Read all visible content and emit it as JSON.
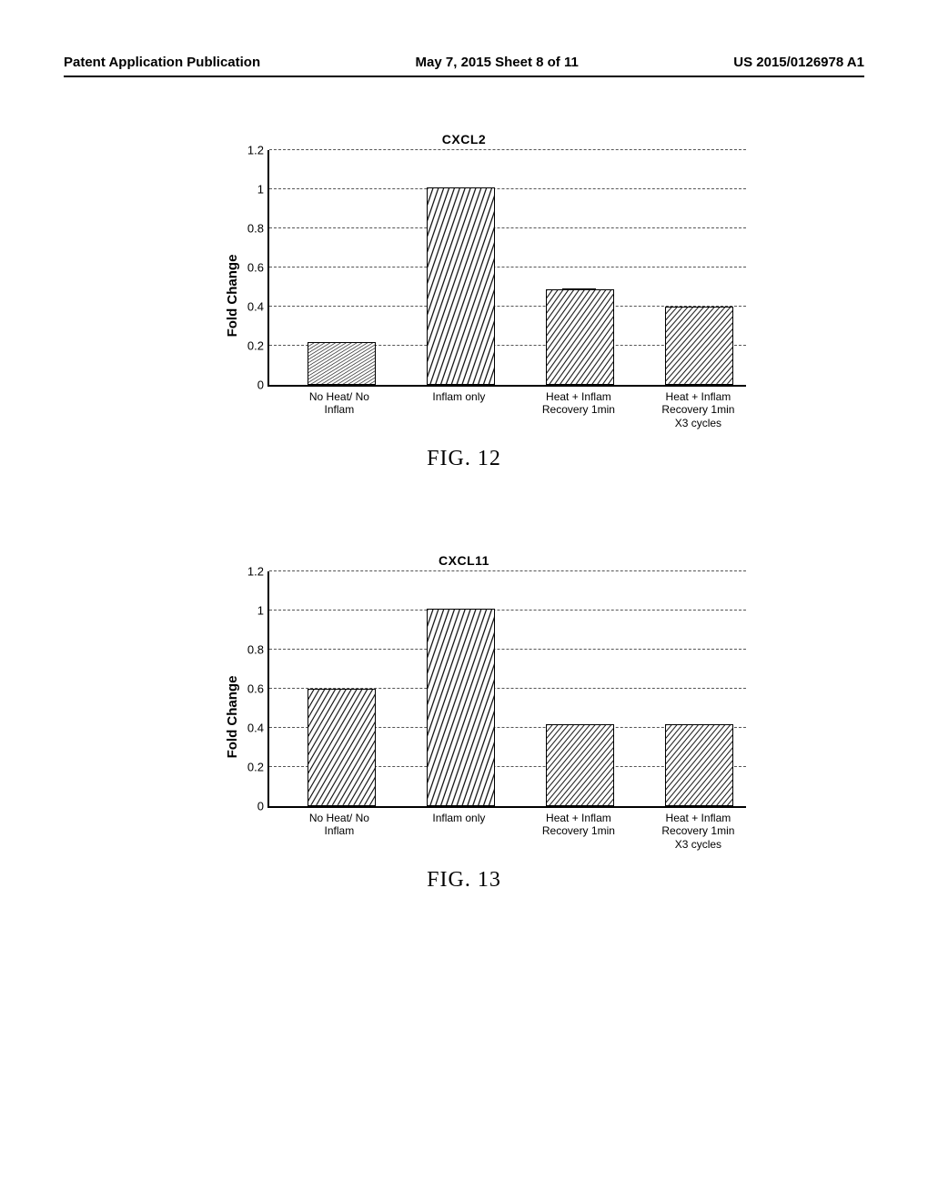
{
  "header": {
    "left": "Patent Application Publication",
    "center": "May 7, 2015   Sheet 8 of 11",
    "right": "US 2015/0126978 A1"
  },
  "charts": [
    {
      "id": "chart12",
      "title": "CXCL2",
      "caption": "FIG. 12",
      "ylabel": "Fold Change",
      "ymax": 1.2,
      "yticks": [
        0,
        0.2,
        0.4,
        0.6,
        0.8,
        1,
        1.2
      ],
      "bar_color": "#ffffff",
      "hatch_color": "#000000",
      "border_color": "#000000",
      "categories": [
        {
          "label_lines": [
            "No Heat/ No",
            "Inflam"
          ],
          "value": 0.21
        },
        {
          "label_lines": [
            "Inflam only"
          ],
          "value": 1.0
        },
        {
          "label_lines": [
            "Heat + Inflam",
            "Recovery 1min"
          ],
          "value": 0.48,
          "error_cap": true
        },
        {
          "label_lines": [
            "Heat + Inflam",
            "Recovery 1min",
            "X3 cycles"
          ],
          "value": 0.39
        }
      ]
    },
    {
      "id": "chart13",
      "title": "CXCL11",
      "caption": "FIG. 13",
      "ylabel": "Fold Change",
      "ymax": 1.2,
      "yticks": [
        0,
        0.2,
        0.4,
        0.6,
        0.8,
        1,
        1.2
      ],
      "bar_color": "#ffffff",
      "hatch_color": "#000000",
      "border_color": "#000000",
      "categories": [
        {
          "label_lines": [
            "No Heat/ No",
            "Inflam"
          ],
          "value": 0.59
        },
        {
          "label_lines": [
            "Inflam only"
          ],
          "value": 1.0
        },
        {
          "label_lines": [
            "Heat + Inflam",
            "Recovery 1min"
          ],
          "value": 0.41
        },
        {
          "label_lines": [
            "Heat + Inflam",
            "Recovery 1min",
            "X3 cycles"
          ],
          "value": 0.41
        }
      ]
    }
  ],
  "layout": {
    "bar_width_pct": 14,
    "bar_positions_pct": [
      8,
      33,
      58,
      83
    ]
  }
}
